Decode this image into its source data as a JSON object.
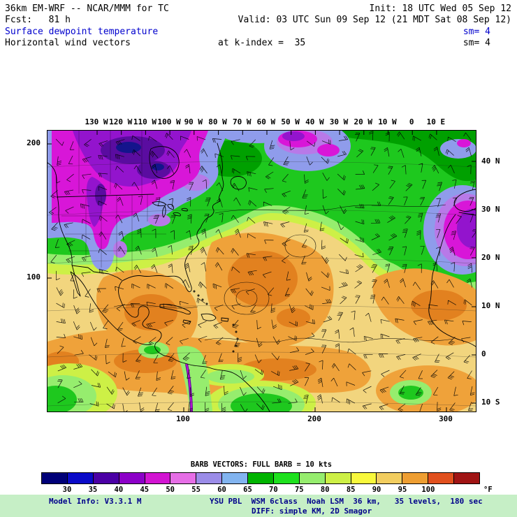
{
  "header": {
    "line1_left": "36km EM-WRF -- NCAR/MMM for TC",
    "line1_right": "Init: 18 UTC Wed 05 Sep 12",
    "line2_left": "Fcst:   81 h",
    "line2_right": "Valid: 03 UTC Sun 09 Sep 12 (21 MDT Sat 08 Sep 12)",
    "line3_left": "Surface dewpoint temperature",
    "line3_right": "sm= 4",
    "line4_left": "Horizontal wind vectors",
    "line4_center": "at k-index =  35",
    "line4_right": "sm= 4",
    "accent_color": "#0000cd"
  },
  "map": {
    "top_axis_labels": [
      "130 W",
      "120 W",
      "110 W",
      "100 W",
      "90 W",
      "80 W",
      "70 W",
      "60 W",
      "50 W",
      "40 W",
      "30 W",
      "20 W",
      "10 W",
      "0",
      "10 E"
    ],
    "right_axis_labels": [
      "40 N",
      "30 N",
      "20 N",
      "10 N",
      "0",
      "10 S"
    ],
    "left_axis_labels": [
      "200",
      "100"
    ],
    "bottom_axis_labels": [
      "100",
      "200",
      "300"
    ]
  },
  "legend": {
    "barb_note": "BARB VECTORS: FULL BARB = 10 kts",
    "unit": "°F",
    "tick_labels": [
      "30",
      "35",
      "40",
      "45",
      "50",
      "55",
      "60",
      "65",
      "70",
      "75",
      "80",
      "85",
      "90",
      "95",
      "100"
    ],
    "swatches": [
      "#000078",
      "#0a0ac8",
      "#4b00a5",
      "#8c00c8",
      "#d214d2",
      "#e66ee6",
      "#9b8ce8",
      "#82b4f0",
      "#00b400",
      "#1ee11e",
      "#96ed6e",
      "#cdf046",
      "#f8f83c",
      "#f2cd5f",
      "#ee9e32",
      "#e1501e",
      "#a01414"
    ]
  },
  "chart_data": {
    "type": "heatmap",
    "title": "Surface dewpoint temperature (shaded, °F) with horizontal wind vectors",
    "colorbar_ticks": [
      30,
      35,
      40,
      45,
      50,
      55,
      60,
      65,
      70,
      75,
      80,
      85,
      90,
      95,
      100
    ],
    "colorbar_unit": "°F",
    "legend_position": "bottom"
  },
  "footer": {
    "bg_color": "#c6efc6",
    "text_color": "#00008b",
    "line1_left": "Model Info: V3.3.1 M",
    "line1_right": "YSU PBL  WSM 6class  Noah LSM  36 km,   35 levels,  180 sec",
    "line2": "DIFF: simple KM, 2D Smagor"
  }
}
